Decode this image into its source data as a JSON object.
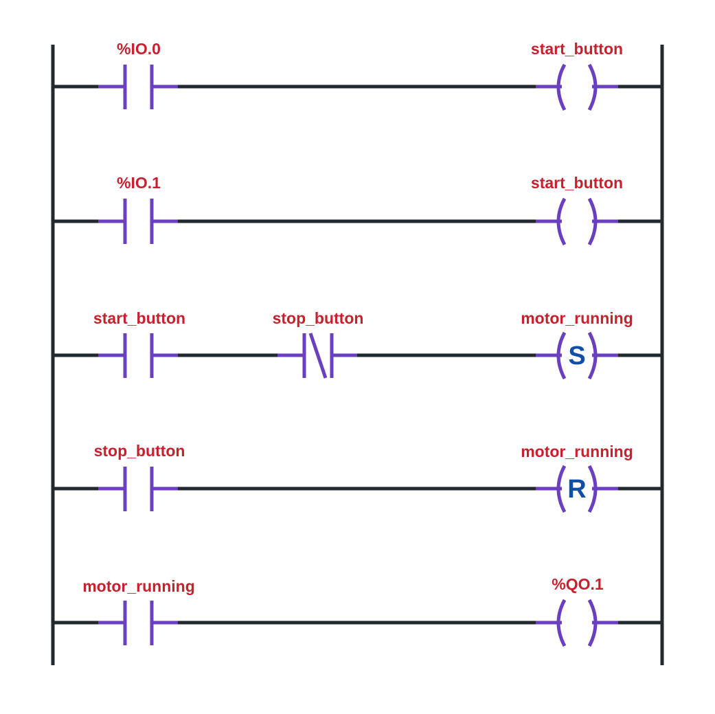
{
  "colors": {
    "wire": "#222a30",
    "symbol": "#6a3fc0",
    "tag": "#c8202e",
    "coil_letter": "#0f4fa8",
    "background": "#ffffff"
  },
  "rungs": [
    {
      "contacts": [
        {
          "tag": "%IO.0",
          "type": "NO"
        }
      ],
      "coil": {
        "tag": "start_button",
        "type": "normal",
        "letter": ""
      }
    },
    {
      "contacts": [
        {
          "tag": "%IO.1",
          "type": "NO"
        }
      ],
      "coil": {
        "tag": "start_button",
        "type": "normal",
        "letter": ""
      }
    },
    {
      "contacts": [
        {
          "tag": "start_button",
          "type": "NO"
        },
        {
          "tag": "stop_button",
          "type": "NC"
        }
      ],
      "coil": {
        "tag": "motor_running",
        "type": "set",
        "letter": "S"
      }
    },
    {
      "contacts": [
        {
          "tag": "stop_button",
          "type": "NO"
        }
      ],
      "coil": {
        "tag": "motor_running",
        "type": "reset",
        "letter": "R"
      }
    },
    {
      "contacts": [
        {
          "tag": "motor_running",
          "type": "NO"
        }
      ],
      "coil": {
        "tag": "%QO.1",
        "type": "normal",
        "letter": ""
      }
    }
  ]
}
